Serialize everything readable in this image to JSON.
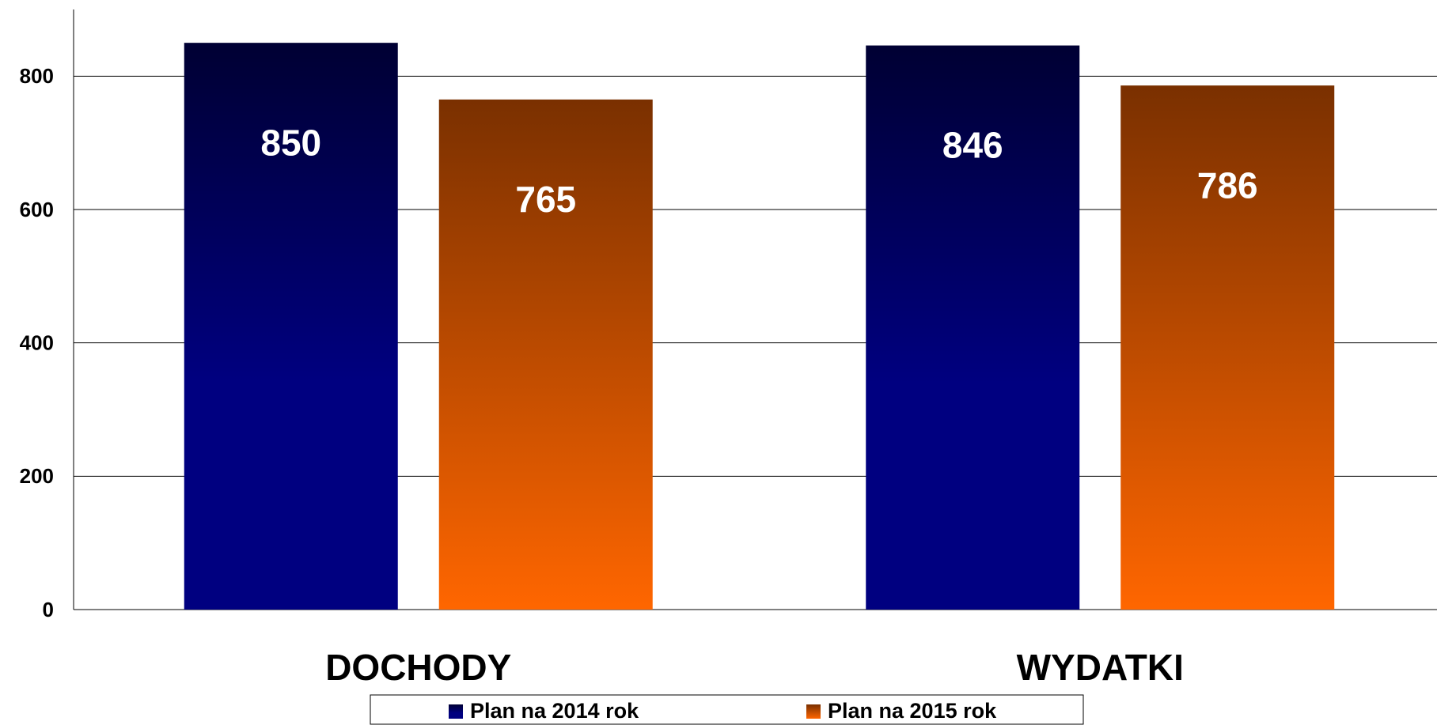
{
  "chart_data": {
    "type": "bar",
    "categories": [
      "DOCHODY",
      "WYDATKI"
    ],
    "series": [
      {
        "name": "Plan na 2014 rok",
        "color": "#000080",
        "values": [
          850,
          846
        ]
      },
      {
        "name": "Plan na 2015 rok",
        "color": "#ff6600",
        "values": [
          765,
          786
        ]
      }
    ],
    "ylim": [
      0,
      900
    ],
    "yticks": [
      0,
      200,
      400,
      600,
      800
    ],
    "grid": true,
    "legend": "bottom"
  }
}
